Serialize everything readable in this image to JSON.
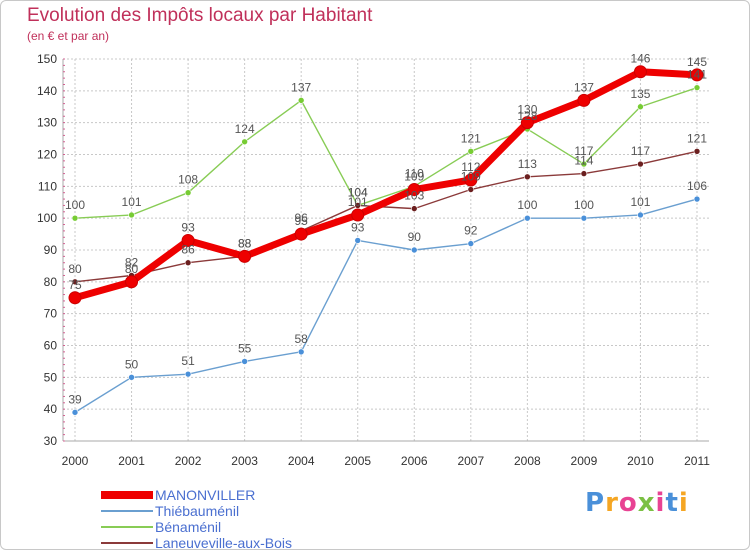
{
  "header": {
    "title": "Evolution des Impôts locaux par Habitant",
    "subtitle": "(en € et par an)"
  },
  "colors": {
    "title": "#c0305a",
    "grid": "#c8c8c8",
    "axis": "#aaaaaa",
    "legend_text": "#4a6fd0"
  },
  "chart_data": {
    "type": "line",
    "title": "Evolution des Impôts locaux par Habitant",
    "subtitle": "(en € et par an)",
    "xlabel": "",
    "ylabel": "",
    "x": [
      "2000",
      "2001",
      "2002",
      "2003",
      "2004",
      "2005",
      "2006",
      "2007",
      "2008",
      "2009",
      "2010",
      "2011"
    ],
    "ylim": [
      30,
      150
    ],
    "yticks": [
      30,
      40,
      50,
      60,
      70,
      80,
      90,
      100,
      110,
      120,
      130,
      140,
      150
    ],
    "grid": true,
    "legend_position": "bottom-left",
    "series": [
      {
        "name": "MANONVILLER",
        "color": "#ee0000",
        "width": "thick",
        "values": [
          75,
          80,
          93,
          88,
          95,
          101,
          109,
          112,
          130,
          137,
          146,
          145
        ]
      },
      {
        "name": "Thiébauménil",
        "color": "#6a9fd0",
        "dot": "#4a90d9",
        "width": "thin",
        "values": [
          39,
          50,
          51,
          55,
          58,
          93,
          90,
          92,
          100,
          100,
          101,
          106
        ]
      },
      {
        "name": "Bénaménil",
        "color": "#88cc55",
        "dot": "#77cc33",
        "width": "thin",
        "values": [
          100,
          101,
          108,
          124,
          137,
          104,
          110,
          121,
          128,
          117,
          135,
          141
        ]
      },
      {
        "name": "Laneuveville-aux-Bois",
        "color": "#8b3a3a",
        "dot": "#6b1f1f",
        "width": "thin",
        "values": [
          80,
          82,
          86,
          88,
          96,
          104,
          103,
          109,
          113,
          114,
          117,
          121
        ]
      }
    ]
  },
  "logo": {
    "text": "Proxiti",
    "letter_colors": [
      "#4a90d9",
      "#f5a623",
      "#e84393",
      "#7bc043",
      "#e84393",
      "#4a90d9",
      "#f5a623"
    ]
  }
}
